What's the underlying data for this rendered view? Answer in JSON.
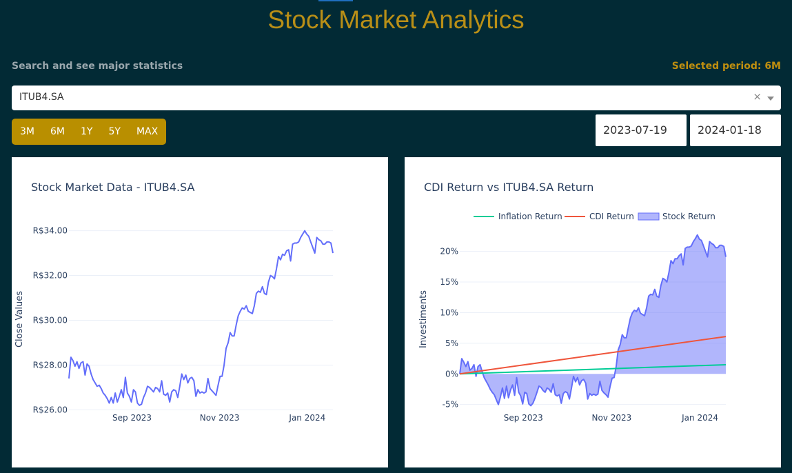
{
  "header": {
    "title": "Stock Market Analytics"
  },
  "controls": {
    "search_label": "Search and see major statistics",
    "selected_period": "Selected period: 6M",
    "ticker_value": "ITUB4.SA",
    "clear_symbol": "×",
    "period_buttons": [
      "3M",
      "6M",
      "1Y",
      "5Y",
      "MAX"
    ],
    "start_date": "2023-07-19",
    "end_date": "2024-01-18"
  },
  "colors": {
    "background": "#022a35",
    "accent": "#b98f00",
    "stock_line": "#636efa",
    "cdi_line": "#ef553b",
    "inflation_line": "#00cc96"
  },
  "chart_data": [
    {
      "type": "line",
      "title": "Stock Market Data - ITUB4.SA",
      "xlabel": "",
      "ylabel": "Close Values",
      "x_ticks": [
        "Sep 2023",
        "Nov 2023",
        "Jan 2024"
      ],
      "y_ticks": [
        "R$26.00",
        "R$28.00",
        "R$30.00",
        "R$32.00",
        "R$34.00"
      ],
      "ylim": [
        25.95,
        34.05
      ],
      "grid": true,
      "series": [
        {
          "values": [
            27.4,
            28.35,
            28.2,
            27.95,
            28.15,
            27.85,
            28.1,
            28.15,
            27.55,
            28.05,
            27.95,
            27.6,
            27.35,
            27.2,
            27.05,
            27.1,
            26.95,
            26.75,
            26.65,
            26.5,
            26.3,
            26.55,
            26.3,
            26.75,
            26.35,
            26.6,
            26.9,
            26.55,
            27.45,
            26.75,
            26.6,
            26.35,
            26.9,
            26.8,
            26.3,
            26.2,
            26.25,
            26.55,
            26.75,
            27.05,
            27.0,
            26.9,
            26.8,
            27.0,
            26.95,
            26.8,
            27.3,
            26.7,
            26.65,
            26.75,
            26.35,
            26.8,
            26.9,
            26.85,
            26.55,
            27.05,
            27.6,
            27.35,
            27.55,
            27.2,
            27.4,
            27.45,
            27.3,
            26.6,
            26.9,
            26.75,
            26.8,
            26.75,
            26.8,
            27.4,
            26.95,
            26.85,
            26.75,
            26.65,
            27.1,
            27.5,
            27.5,
            28.0,
            28.75,
            29.0,
            29.45,
            29.3,
            29.3,
            29.8,
            30.2,
            30.4,
            30.55,
            30.5,
            30.65,
            30.4,
            30.35,
            30.3,
            30.65,
            31.2,
            31.3,
            31.25,
            31.5,
            31.2,
            31.15,
            31.7,
            32.0,
            31.95,
            31.85,
            32.3,
            32.85,
            32.7,
            32.95,
            32.9,
            33.1,
            33.15,
            32.65,
            33.4,
            33.45,
            33.45,
            33.5,
            33.7,
            33.85,
            34.0,
            33.85,
            33.75,
            33.5,
            33.25,
            33.0,
            33.7,
            33.6,
            33.55,
            33.4,
            33.4,
            33.5,
            33.5,
            33.45,
            33.0
          ]
        }
      ]
    },
    {
      "type": "area",
      "title": "CDI Return vs ITUB4.SA Return",
      "xlabel": "",
      "ylabel": "Investiments",
      "x_ticks": [
        "Sep 2023",
        "Nov 2023",
        "Jan 2024"
      ],
      "y_ticks": [
        "-5%",
        "0%",
        "5%",
        "10%",
        "15%",
        "20%"
      ],
      "ylim": [
        -5.6,
        23
      ],
      "grid": true,
      "legend": "top",
      "series": [
        {
          "name": "Inflation Return",
          "type": "line",
          "values": [
            0,
            1.5
          ]
        },
        {
          "name": "CDI Return",
          "type": "line",
          "values": [
            0,
            6.1
          ]
        },
        {
          "name": "Stock Return",
          "type": "area",
          "values": [
            0,
            2.5,
            1.9,
            1.2,
            2.0,
            0.6,
            0.9,
            1.5,
            -0.4,
            1.2,
            1.5,
            0.4,
            -0.6,
            -1.2,
            -1.8,
            -2.5,
            -3.0,
            -3.4,
            -4.2,
            -5.0,
            -3.8,
            -2.3,
            -4.0,
            -2.0,
            -3.9,
            -2.6,
            -1.8,
            -3.5,
            -0.6,
            -3.0,
            -3.6,
            -4.9,
            -3.0,
            -3.2,
            -4.9,
            -5.2,
            -4.8,
            -4.0,
            -3.0,
            -2.0,
            -2.2,
            -2.7,
            -3.0,
            -2.3,
            -2.5,
            -3.0,
            -1.6,
            -3.4,
            -3.6,
            -3.4,
            -4.8,
            -3.2,
            -2.9,
            -3.1,
            -4.1,
            -2.3,
            -0.4,
            -1.3,
            -0.6,
            -1.8,
            -1.1,
            -0.9,
            -1.5,
            -4.1,
            -3.2,
            -3.5,
            -3.3,
            -3.5,
            -3.3,
            -1.2,
            -2.7,
            -3.1,
            -3.4,
            -3.8,
            -2.1,
            -0.7,
            -0.6,
            1.2,
            3.9,
            4.8,
            6.4,
            5.9,
            5.9,
            7.6,
            9.1,
            10.0,
            10.4,
            10.2,
            10.8,
            9.9,
            9.7,
            9.5,
            10.8,
            12.7,
            13.0,
            12.9,
            13.8,
            12.7,
            12.5,
            14.4,
            15.6,
            15.4,
            15.0,
            16.6,
            18.5,
            18.0,
            18.8,
            18.8,
            19.3,
            19.6,
            17.8,
            20.5,
            20.7,
            20.7,
            20.9,
            21.6,
            22.1,
            22.7,
            22.0,
            21.8,
            20.9,
            20.0,
            19.1,
            21.6,
            21.3,
            21.1,
            20.6,
            20.6,
            21.0,
            21.0,
            20.8,
            19.1
          ]
        }
      ]
    }
  ]
}
